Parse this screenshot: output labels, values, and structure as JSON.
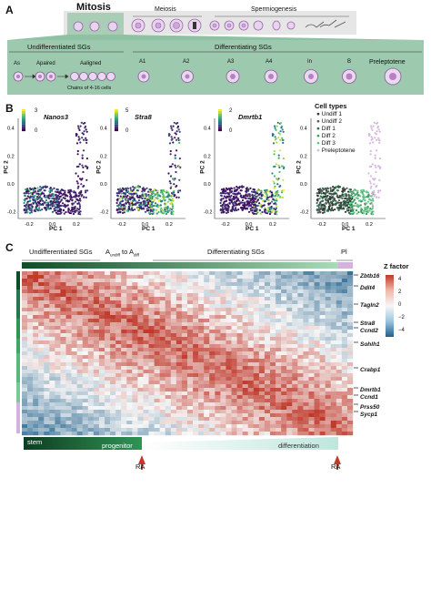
{
  "panels": {
    "a": {
      "letter": "A",
      "top_stages": [
        "Mitosis",
        "Meiosis",
        "Spermiogenesis"
      ],
      "undiff_title": "Undifferentiated SGs",
      "diff_title": "Differentiating SGs",
      "cell_labels": [
        "As",
        "Apaired",
        "Aaligned",
        "A1",
        "A2",
        "A3",
        "A4",
        "In",
        "B",
        "Preleptotene"
      ],
      "chains_note": "Chains of 4-16 cells"
    },
    "b": {
      "letter": "B",
      "genes": [
        "Nanos3",
        "Stra8",
        "Dmrtb1"
      ],
      "colorbar_ticks": [
        [
          "3",
          "0"
        ],
        [
          "5",
          "0"
        ],
        [
          "2",
          "0"
        ]
      ],
      "legend_title": "Cell types",
      "cell_types": [
        {
          "name": "Undiff 1",
          "color": "#333333"
        },
        {
          "name": "Undiff 2",
          "color": "#555a5a"
        },
        {
          "name": "Diff 1",
          "color": "#2e6b4a"
        },
        {
          "name": "Diff 2",
          "color": "#3a9a60"
        },
        {
          "name": "Diff 3",
          "color": "#6cc28a"
        },
        {
          "name": "Preleptotene",
          "color": "#d9b8df"
        }
      ],
      "x_label": "PC 1",
      "y_label": "PC 2",
      "x_ticks": [
        "-0.2",
        "0.0",
        "0.2"
      ],
      "y_ticks": [
        "0.4",
        "0.2",
        "0.0",
        "-0.2"
      ]
    },
    "c": {
      "letter": "C",
      "header_left": "Undifferentiated SGs",
      "header_mid_a": "A",
      "header_mid_sub1": "undiff",
      "header_mid_to": " to A",
      "header_mid_sub2": "diff",
      "header_right": "Differentiating SGs",
      "header_pl": "Pl",
      "zfactor_title": "Z factor",
      "z_ticks": [
        "4",
        "2",
        "0",
        "−2",
        "−4"
      ],
      "genes": [
        "Zbtb16",
        "Ddit4",
        "Tagln2",
        "Stra8",
        "Ccnd2",
        "Sohlh1",
        "Crabp1",
        "Dmrtb1",
        "Ccnd1",
        "Prss50",
        "Sycp1"
      ],
      "bar_stem": "stem",
      "bar_progenitor": "progenitor",
      "bar_differentiation": "differentiation",
      "ra_labels": [
        "RA",
        "RA"
      ]
    }
  }
}
